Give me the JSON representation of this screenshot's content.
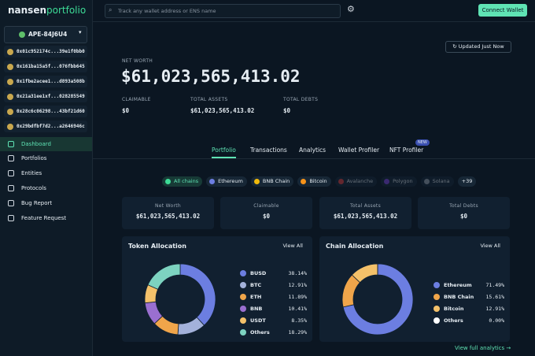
{
  "logo": {
    "brand": "nansen",
    "product": "portfolio"
  },
  "search_placeholder": "Track any wallet address or ENS name",
  "connect_button": "Connect Wallet",
  "sidebar": {
    "wallet": "APE-84J6U4",
    "addresses": [
      "0x01c952174c...39e1f0bb0",
      "0x161ba15a5f...076fbb645",
      "0x1fbe2acee1...d893a508b",
      "0x21a31ee1xf...028285549",
      "0x28c6c06298...43bf21d60",
      "0x29bdfbf7d2...a2646946c"
    ],
    "nav": [
      {
        "label": "Dashboard",
        "active": true
      },
      {
        "label": "Portfolios"
      },
      {
        "label": "Entities"
      },
      {
        "label": "Protocols"
      },
      {
        "label": "Bug Report"
      },
      {
        "label": "Feature Request"
      }
    ]
  },
  "summary": {
    "updated": "Updated Just Now",
    "net_worth_label": "NET WORTH",
    "net_worth": "$61,023,565,413.02",
    "stats": [
      {
        "label": "CLAIMABLE",
        "value": "$0"
      },
      {
        "label": "TOTAL ASSETS",
        "value": "$61,023,565,413.02"
      },
      {
        "label": "TOTAL DEBTS",
        "value": "$0"
      }
    ]
  },
  "tabs": [
    {
      "label": "Portfolio",
      "active": true
    },
    {
      "label": "Transactions"
    },
    {
      "label": "Analytics"
    },
    {
      "label": "Wallet Profiler"
    },
    {
      "label": "NFT Profiler",
      "badge": "NEW"
    }
  ],
  "chains": [
    {
      "label": "All chains",
      "state": "active",
      "color": "#3ddc97"
    },
    {
      "label": "Ethereum",
      "color": "#6c7ee1"
    },
    {
      "label": "BNB Chain",
      "color": "#f0b90b"
    },
    {
      "label": "Bitcoin",
      "color": "#f7931a"
    },
    {
      "label": "Avalanche",
      "state": "disabled",
      "color": "#e84142"
    },
    {
      "label": "Polygon",
      "state": "disabled",
      "color": "#8247e5"
    },
    {
      "label": "Solana",
      "state": "disabled",
      "color": "#9aa4b1"
    },
    {
      "label": "+39"
    }
  ],
  "cards": [
    {
      "label": "Net Worth",
      "value": "$61,023,565,413.02"
    },
    {
      "label": "Claimable",
      "value": "$0"
    },
    {
      "label": "Total Assets",
      "value": "$61,023,565,413.02"
    },
    {
      "label": "Total Debts",
      "value": "$0"
    }
  ],
  "token_allocation": {
    "title": "Token Allocation",
    "view_all": "View All",
    "items": [
      {
        "name": "BUSD",
        "value": 38.14,
        "label": "38.14%",
        "color": "#6c7ee1"
      },
      {
        "name": "BTC",
        "value": 12.91,
        "label": "12.91%",
        "color": "#a3b1da"
      },
      {
        "name": "ETH",
        "value": 11.89,
        "label": "11.89%",
        "color": "#f0a54a"
      },
      {
        "name": "BNB",
        "value": 10.41,
        "label": "10.41%",
        "color": "#9a6fd0"
      },
      {
        "name": "USDT",
        "value": 8.35,
        "label": "8.35%",
        "color": "#f4c16a"
      },
      {
        "name": "Others",
        "value": 18.29,
        "label": "18.29%",
        "color": "#7dd3c0"
      }
    ]
  },
  "chain_allocation": {
    "title": "Chain Allocation",
    "view_all": "View All",
    "items": [
      {
        "name": "Ethereum",
        "value": 71.49,
        "label": "71.49%",
        "color": "#6c7ee1"
      },
      {
        "name": "BNB Chain",
        "value": 15.61,
        "label": "15.61%",
        "color": "#f0a54a"
      },
      {
        "name": "Bitcoin",
        "value": 12.91,
        "label": "12.91%",
        "color": "#f4c16a"
      },
      {
        "name": "Others",
        "value": 0.0,
        "label": "0.00%",
        "color": "#ffffff"
      }
    ]
  },
  "footer_link": "View full analytics →"
}
